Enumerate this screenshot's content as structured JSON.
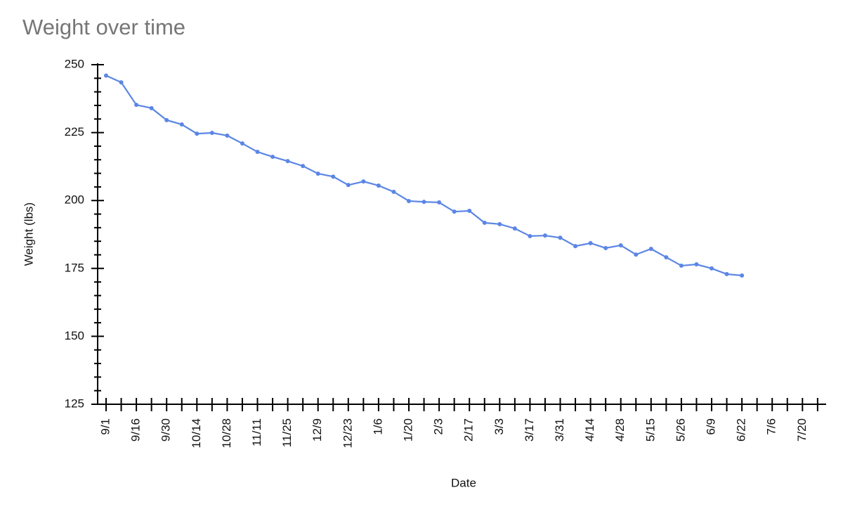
{
  "chart_data": {
    "type": "line",
    "title": "Weight over time",
    "x_label": "Date",
    "y_label": "Weight (lbs)",
    "categories": [
      "9/1",
      null,
      "9/16",
      null,
      "9/30",
      null,
      "10/14",
      null,
      "10/28",
      null,
      "11/11",
      null,
      "11/25",
      null,
      "12/9",
      null,
      "12/23",
      null,
      "1/6",
      null,
      "1/20",
      null,
      "2/3",
      null,
      "2/17",
      null,
      "3/3",
      null,
      "3/17",
      null,
      "3/31",
      null,
      "4/14",
      null,
      "4/28",
      null,
      "5/15",
      null,
      "5/26",
      null,
      "6/9",
      null,
      "6/22",
      null,
      "7/6",
      null,
      "7/20",
      null
    ],
    "series": [
      {
        "name": "Weight",
        "color": "#5b86e5",
        "values": [
          246,
          243.5,
          235.2,
          234,
          229.6,
          228,
          224.6,
          224.9,
          223.9,
          221,
          217.9,
          216.1,
          214.5,
          212.7,
          209.9,
          208.8,
          205.7,
          207,
          205.5,
          203.2,
          199.8,
          199.5,
          199.3,
          195.9,
          196.2,
          191.8,
          191.3,
          189.7,
          186.9,
          187.1,
          186.3,
          183.2,
          184.3,
          182.5,
          183.5,
          180.1,
          182.2,
          179.1,
          176,
          176.5,
          175,
          172.9,
          172.4,
          null,
          null,
          null,
          null,
          null
        ]
      }
    ],
    "ylim": [
      125,
      250
    ],
    "yticks": [
      125,
      150,
      175,
      200,
      225,
      250
    ]
  }
}
